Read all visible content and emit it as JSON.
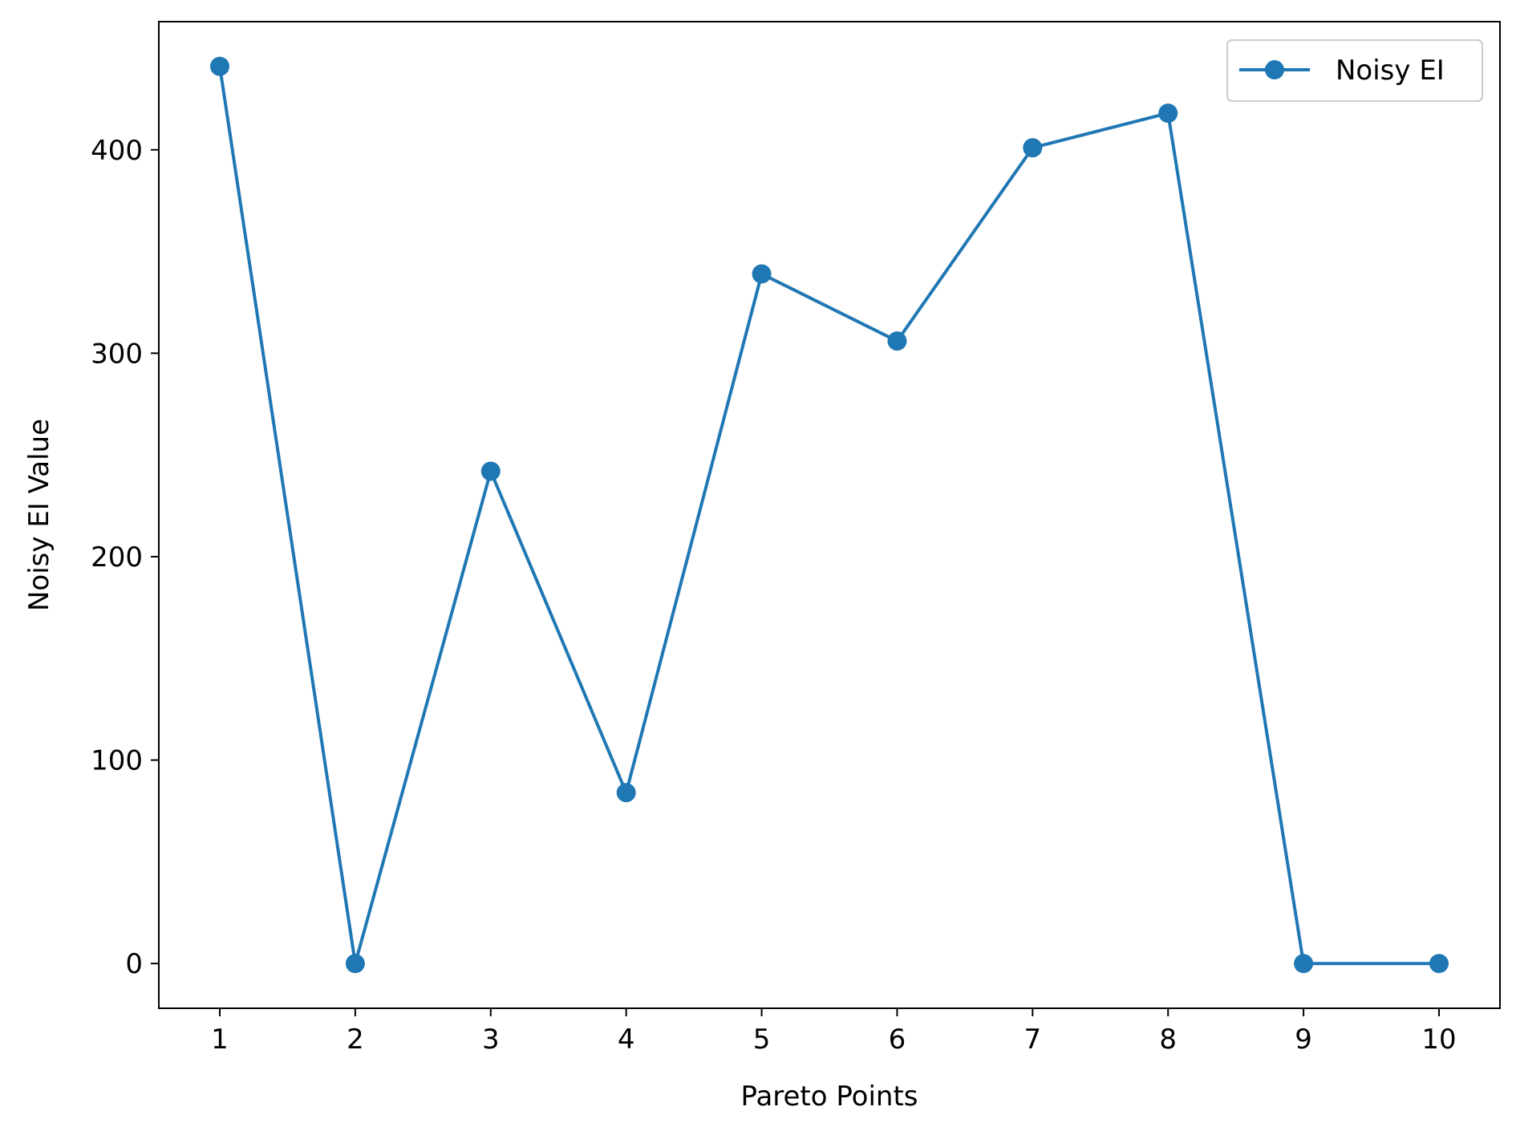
{
  "chart_data": {
    "type": "line",
    "title": "",
    "xlabel": "Pareto Points",
    "ylabel": "Noisy EI Value",
    "x": [
      1,
      2,
      3,
      4,
      5,
      6,
      7,
      8,
      9,
      10
    ],
    "x_tick_labels": [
      "1",
      "2",
      "3",
      "4",
      "5",
      "6",
      "7",
      "8",
      "9",
      "10"
    ],
    "y_ticks": [
      0,
      100,
      200,
      300,
      400
    ],
    "y_tick_labels": [
      "0",
      "100",
      "200",
      "300",
      "400"
    ],
    "xlim": [
      0.55,
      10.45
    ],
    "ylim": [
      -22,
      463
    ],
    "grid": false,
    "legend_position": "top-right",
    "series": [
      {
        "name": "Noisy EI",
        "color": "#1f77b4",
        "marker": "circle",
        "values": [
          441,
          0,
          242,
          84,
          339,
          306,
          401,
          418,
          0,
          0
        ]
      }
    ]
  }
}
